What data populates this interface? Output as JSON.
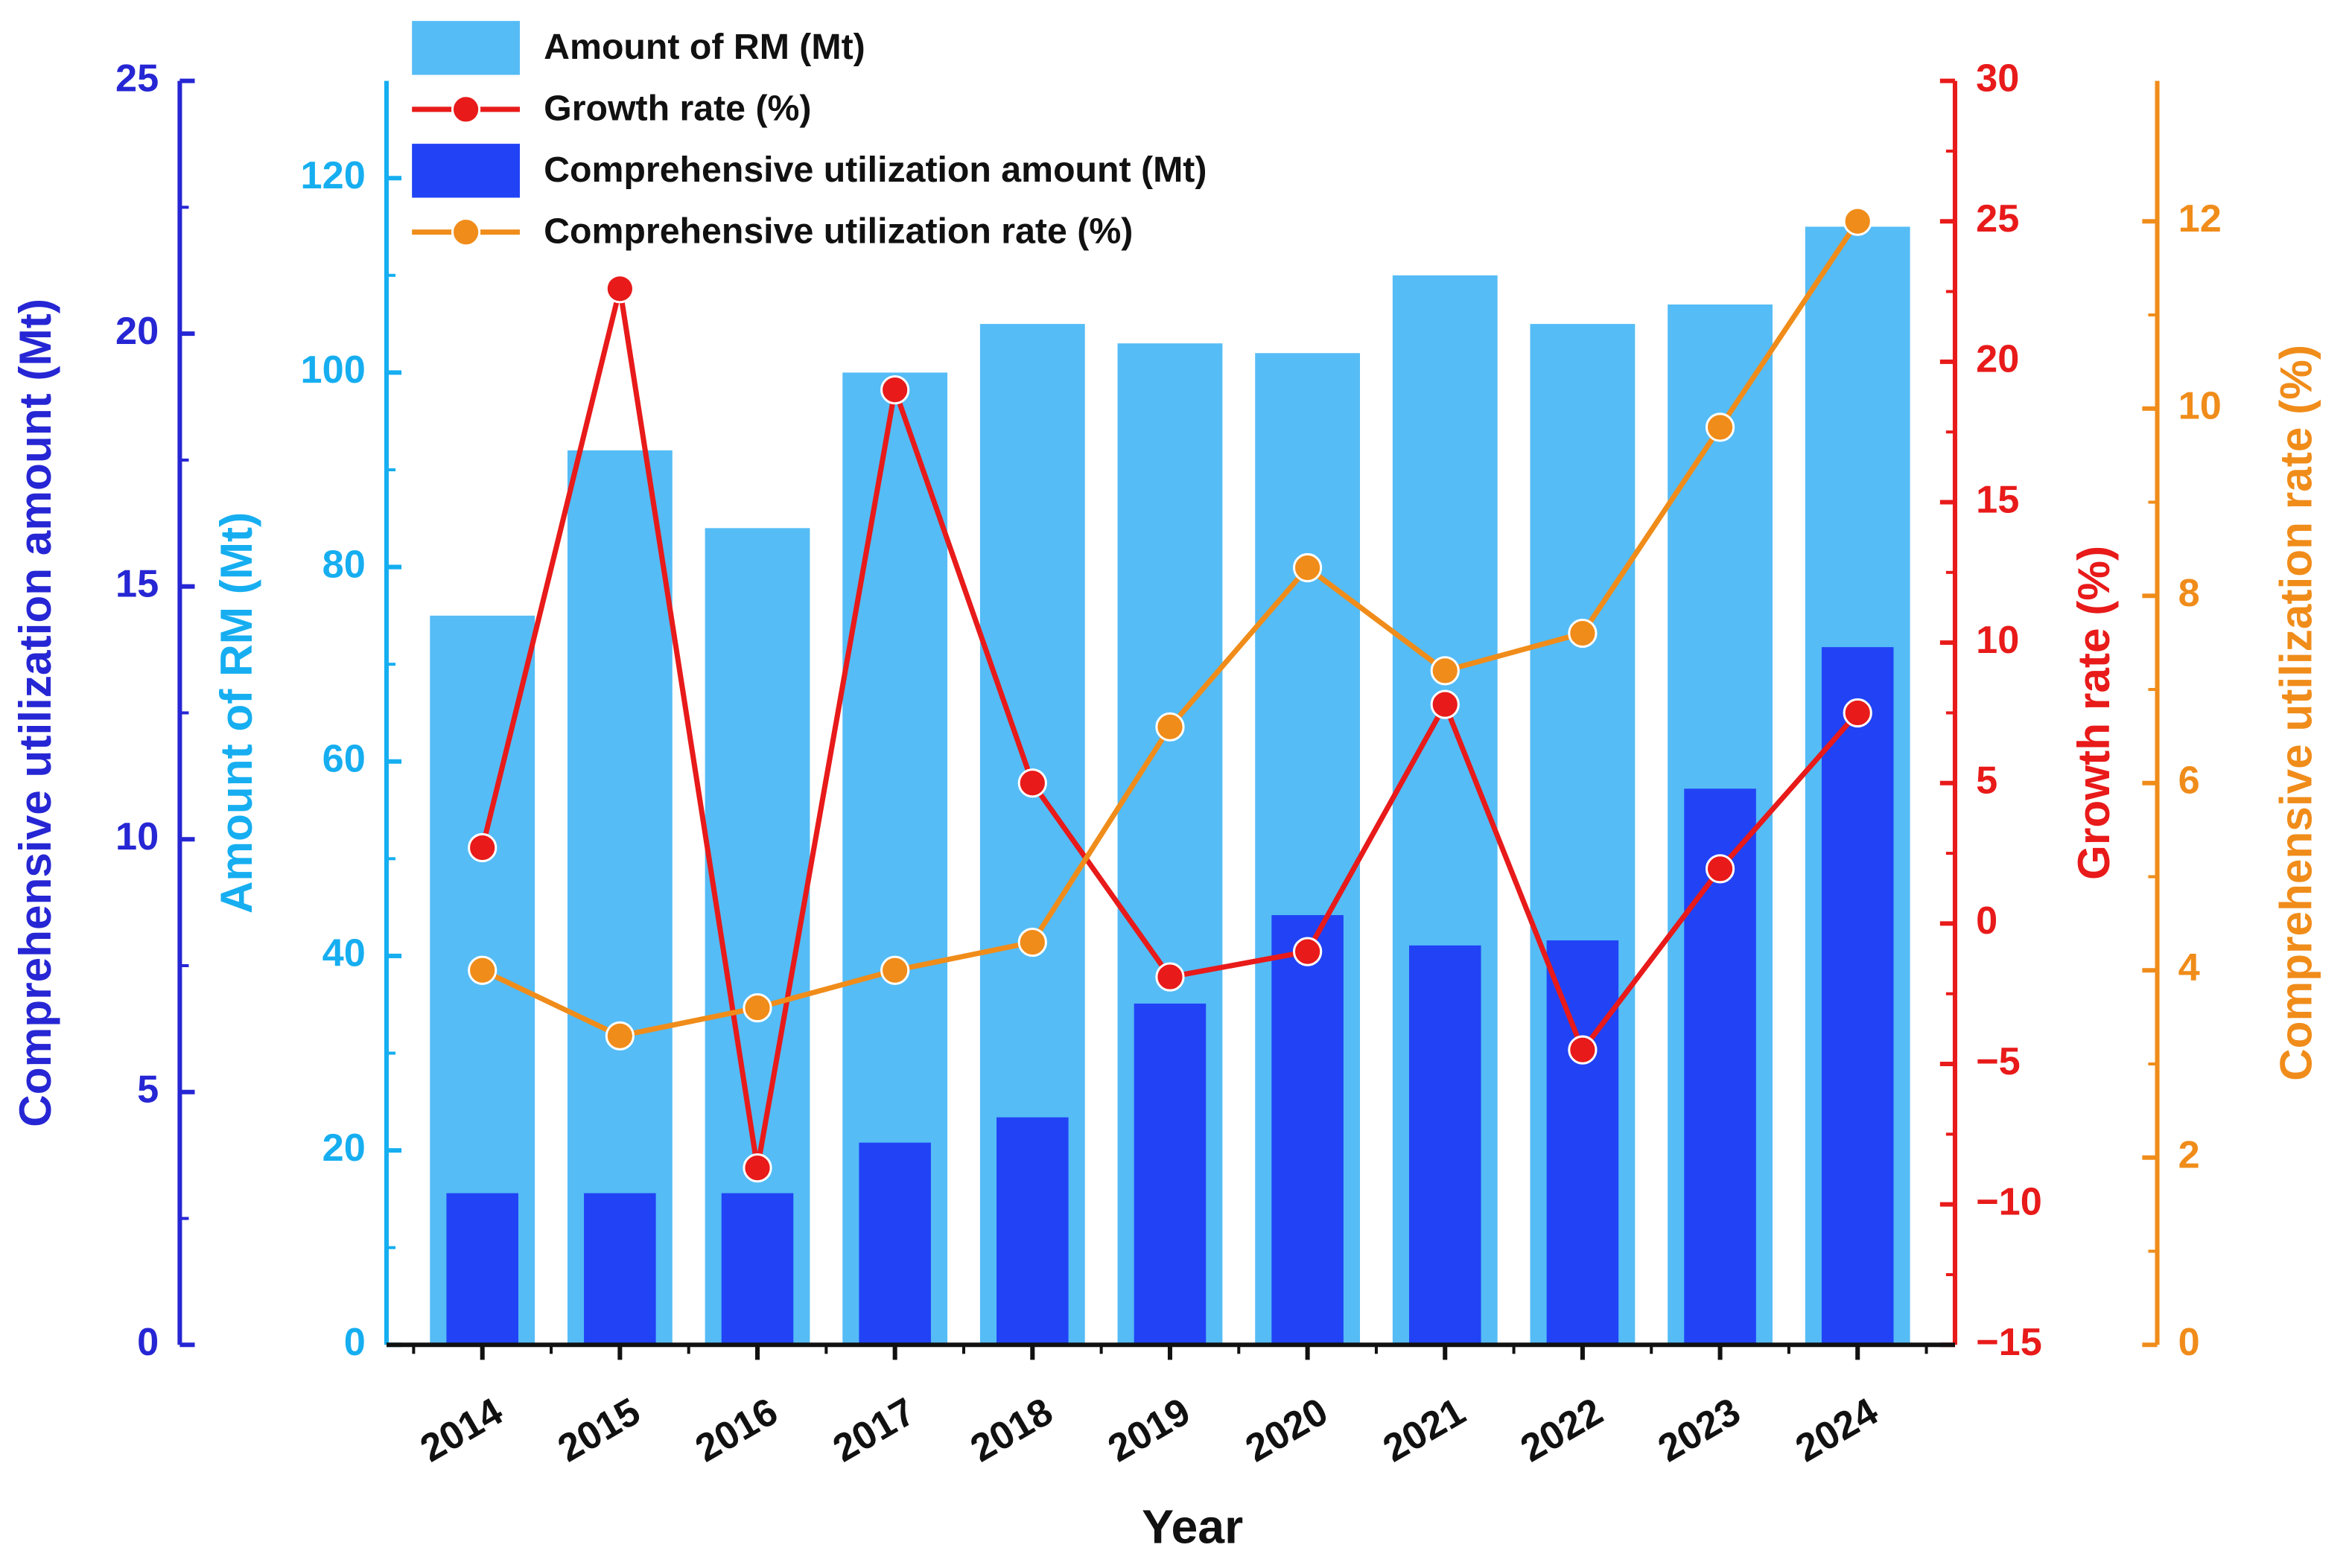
{
  "chart_data": {
    "type": "bar",
    "x_label": "Year",
    "categories": [
      "2014",
      "2015",
      "2016",
      "2017",
      "2018",
      "2019",
      "2020",
      "2021",
      "2022",
      "2023",
      "2024"
    ],
    "axes": [
      {
        "label": "Comprehensive utilization amount (Mt)",
        "lim": [
          0,
          25
        ],
        "ticks": [
          0,
          5,
          10,
          15,
          20,
          25
        ],
        "color": "#2626d4"
      },
      {
        "label": "Amount of RM (Mt)",
        "lim": [
          0,
          130
        ],
        "ticks": [
          0,
          20,
          40,
          60,
          80,
          100,
          120
        ],
        "color": "#16aef0"
      },
      {
        "label": "Growth rate (%)",
        "lim": [
          -15,
          30
        ],
        "ticks": [
          {
            "value": -15,
            "label": "−15"
          },
          {
            "value": -10,
            "label": "−10"
          },
          {
            "value": -5,
            "label": "−5"
          },
          0,
          5,
          10,
          15,
          20,
          25,
          30
        ],
        "color": "#e81a1a"
      },
      {
        "label": "Comprehensive utilization rate (%)",
        "lim": [
          0,
          13.5
        ],
        "ticks": [
          0,
          2,
          4,
          6,
          8,
          10,
          12
        ],
        "color": "#f08c1a"
      }
    ],
    "series": [
      {
        "name": "Amount of RM (Mt)",
        "type": "bar",
        "axis": 1,
        "color": "#55bcf6",
        "values": [
          75,
          92,
          84,
          100,
          105,
          103,
          102,
          110,
          105,
          107,
          115
        ]
      },
      {
        "name": "Growth rate (%)",
        "type": "line",
        "axis": 2,
        "color": "#e81a1a",
        "values": [
          2.7,
          22.6,
          -8.7,
          19,
          5,
          -1.9,
          -1,
          7.8,
          -4.5,
          1.95,
          7.5
        ]
      },
      {
        "name": "Comprehensive utilization amount (Mt)",
        "type": "bar",
        "axis": 0,
        "color": "#2143f5",
        "values": [
          3.0,
          3.0,
          3.0,
          4.0,
          4.5,
          6.75,
          8.5,
          7.9,
          8.0,
          11.0,
          13.8
        ]
      },
      {
        "name": "Comprehensive utilization rate (%)",
        "type": "line",
        "axis": 3,
        "color": "#f08c1a",
        "values": [
          4.0,
          3.3,
          3.6,
          4.0,
          4.3,
          6.6,
          8.3,
          7.2,
          7.6,
          9.8,
          12.0
        ]
      }
    ]
  }
}
